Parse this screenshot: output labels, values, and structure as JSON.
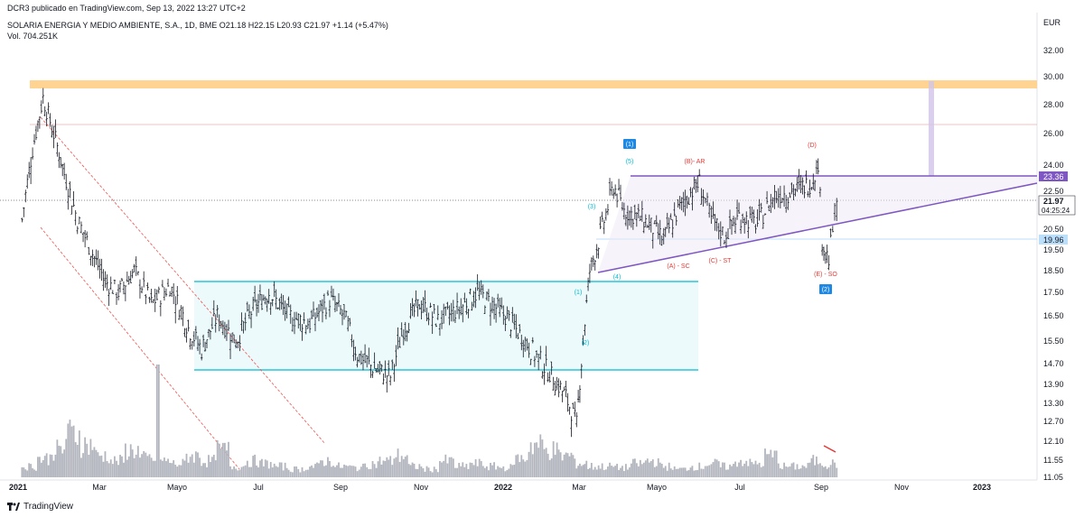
{
  "header": {
    "published": "DCR3 publicado en TradingView.com, Sep 13, 2022 13:27 UTC+2",
    "symbol_line": "SOLARIA ENERGIA Y MEDIO AMBIENTE, S.A., 1D, BME  O21.18  H22.15  L20.93  C21.97  +1.14 (+5.47%)",
    "volume": "Vol.  704.251K",
    "currency": "EUR"
  },
  "footer": {
    "brand": "TradingView"
  },
  "chart_data": {
    "type": "candlestick",
    "title": "SOLARIA ENERGIA Y MEDIO AMBIENTE, S.A., 1D, BME",
    "ohlc_last": {
      "open": 21.18,
      "high": 22.15,
      "low": 20.93,
      "close": 21.97,
      "change": 1.14,
      "change_pct": 5.47
    },
    "y_ticks": [
      "32.00",
      "30.00",
      "28.00",
      "26.00",
      "24.00",
      "22.50",
      "20.50",
      "19.50",
      "18.50",
      "17.50",
      "16.50",
      "15.50",
      "14.70",
      "13.90",
      "13.30",
      "12.70",
      "12.10",
      "11.55",
      "11.05"
    ],
    "x_ticks": [
      "2021",
      "Mar",
      "Mayo",
      "Jul",
      "Sep",
      "Nov",
      "2022",
      "Mar",
      "Mayo",
      "Jul",
      "Sep",
      "Nov",
      "2023"
    ],
    "price_labels": [
      {
        "text": "23.36",
        "color": "#7e57c2",
        "value": 23.36
      },
      {
        "text": "21.97",
        "color": "#131722",
        "value": 21.97
      },
      {
        "text": "04:25:24",
        "color": "#131722",
        "value": 21.97
      },
      {
        "text": "19.96",
        "color": "#ffffff",
        "value": 19.96
      }
    ],
    "close_series": [
      [
        "2021-01-04",
        21.0
      ],
      [
        "2021-01-12",
        25.0
      ],
      [
        "2021-01-20",
        28.5
      ],
      [
        "2021-01-28",
        26.0
      ],
      [
        "2021-02-05",
        23.5
      ],
      [
        "2021-02-15",
        21.0
      ],
      [
        "2021-02-25",
        19.5
      ],
      [
        "2021-03-08",
        18.0
      ],
      [
        "2021-03-18",
        17.5
      ],
      [
        "2021-03-30",
        18.5
      ],
      [
        "2021-04-12",
        17.0
      ],
      [
        "2021-04-26",
        17.8
      ],
      [
        "2021-05-10",
        16.0
      ],
      [
        "2021-05-20",
        15.2
      ],
      [
        "2021-06-01",
        16.5
      ],
      [
        "2021-06-15",
        15.5
      ],
      [
        "2021-06-28",
        16.8
      ],
      [
        "2021-07-10",
        17.5
      ],
      [
        "2021-07-25",
        16.5
      ],
      [
        "2021-08-10",
        16.2
      ],
      [
        "2021-08-25",
        17.2
      ],
      [
        "2021-09-05",
        16.5
      ],
      [
        "2021-09-15",
        15.0
      ],
      [
        "2021-09-28",
        14.5
      ],
      [
        "2021-10-10",
        14.2
      ],
      [
        "2021-10-20",
        16.0
      ],
      [
        "2021-11-01",
        17.0
      ],
      [
        "2021-11-15",
        16.3
      ],
      [
        "2021-12-01",
        16.8
      ],
      [
        "2021-12-15",
        17.5
      ],
      [
        "2022-01-05",
        16.5
      ],
      [
        "2022-01-20",
        15.5
      ],
      [
        "2022-02-05",
        14.5
      ],
      [
        "2022-02-20",
        13.5
      ],
      [
        "2022-02-28",
        12.6
      ],
      [
        "2022-03-05",
        15.5
      ],
      [
        "2022-03-10",
        18.5
      ],
      [
        "2022-03-18",
        20.2
      ],
      [
        "2022-03-28",
        22.8
      ],
      [
        "2022-04-05",
        21.5
      ],
      [
        "2022-04-20",
        21.0
      ],
      [
        "2022-05-05",
        20.0
      ],
      [
        "2022-05-20",
        22.0
      ],
      [
        "2022-06-01",
        23.0
      ],
      [
        "2022-06-10",
        21.0
      ],
      [
        "2022-06-20",
        20.2
      ],
      [
        "2022-07-01",
        21.2
      ],
      [
        "2022-07-15",
        20.8
      ],
      [
        "2022-07-28",
        22.3
      ],
      [
        "2022-08-10",
        22.5
      ],
      [
        "2022-08-25",
        23.0
      ],
      [
        "2022-08-30",
        24.2
      ],
      [
        "2022-09-02",
        20.0
      ],
      [
        "2022-09-07",
        19.0
      ],
      [
        "2022-09-13",
        21.97
      ]
    ],
    "volume_heights": [
      0.2,
      0.35,
      0.5,
      0.8,
      0.6,
      0.4,
      0.3,
      0.5,
      0.35,
      0.3,
      0.25,
      0.4,
      0.3,
      0.5,
      0.2,
      0.3,
      0.25,
      0.2,
      0.15,
      0.2,
      0.3,
      0.2,
      0.18,
      0.25,
      0.3,
      0.4,
      0.2,
      0.15,
      0.3,
      0.2,
      0.25,
      0.2,
      0.18,
      0.35,
      0.6,
      0.5,
      0.4,
      0.25,
      0.2,
      0.2,
      0.18,
      0.25,
      0.3,
      0.2,
      0.15,
      0.2,
      0.25,
      0.2,
      0.3,
      0.25,
      0.4,
      0.2,
      0.2,
      0.3,
      0.25
    ],
    "annotations": [
      {
        "text": "(1)",
        "color": "#1e88e5",
        "boxed": true
      },
      {
        "text": "(5)",
        "color": "#00bcd4"
      },
      {
        "text": "(B)- AR",
        "color": "#e53935"
      },
      {
        "text": "(D)",
        "color": "#e53935"
      },
      {
        "text": "(3)",
        "color": "#00bcd4"
      },
      {
        "text": "(4)",
        "color": "#00bcd4"
      },
      {
        "text": "(A) - SC",
        "color": "#e53935"
      },
      {
        "text": "(C) - ST",
        "color": "#e53935"
      },
      {
        "text": "(E) - SO",
        "color": "#e53935"
      },
      {
        "text": "(2)",
        "color": "#1e88e5",
        "boxed": true
      },
      {
        "text": "(1)",
        "color": "#00bcd4"
      },
      {
        "text": "(2)",
        "color": "#00bcd4"
      }
    ],
    "colors": {
      "candle": "#131722",
      "volume": "#b2b5be",
      "resistance_zone": "#ffcc80",
      "range_box_fill": "#e0f7fa",
      "range_box_line": "#26c6da",
      "triangle": "#7e57c2",
      "channel": "#ef5350"
    }
  }
}
